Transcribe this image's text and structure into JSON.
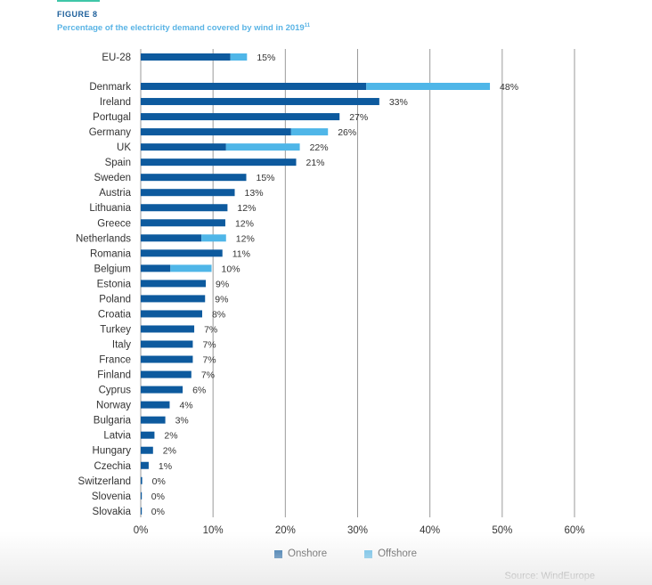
{
  "figure_label": "FIGURE 8",
  "title": "Percentage of the electricity demand covered by wind in 2019",
  "title_footnote": "11",
  "source": "Source: WindEurope",
  "colors": {
    "accent_line": "#3fc6a8",
    "figure_label": "#1b5e9a",
    "title": "#5ab4e5",
    "onshore": "#0d5a9e",
    "offshore": "#4fb6e8",
    "grid": "#9a9a9a"
  },
  "chart_data": {
    "type": "bar",
    "orientation": "horizontal",
    "stacked": true,
    "categories": [
      "EU-28",
      "Denmark",
      "Ireland",
      "Portugal",
      "Germany",
      "UK",
      "Spain",
      "Sweden",
      "Austria",
      "Lithuania",
      "Greece",
      "Netherlands",
      "Romania",
      "Belgium",
      "Estonia",
      "Poland",
      "Croatia",
      "Turkey",
      "Italy",
      "France",
      "Finland",
      "Cyprus",
      "Norway",
      "Bulgaria",
      "Latvia",
      "Hungary",
      "Czechia",
      "Switzerland",
      "Slovenia",
      "Slovakia"
    ],
    "series": [
      {
        "name": "Onshore",
        "values": [
          12.4,
          31.2,
          33.0,
          27.5,
          20.8,
          11.8,
          21.5,
          14.6,
          13.0,
          12.0,
          11.7,
          8.4,
          11.3,
          4.1,
          9.0,
          8.9,
          8.5,
          7.4,
          7.2,
          7.2,
          7.0,
          5.8,
          4.0,
          3.4,
          1.9,
          1.7,
          1.1,
          0.2,
          0.1,
          0.1
        ]
      },
      {
        "name": "Offshore",
        "values": [
          2.3,
          17.1,
          0,
          0,
          5.1,
          10.2,
          0,
          0,
          0,
          0,
          0,
          3.4,
          0,
          5.7,
          0,
          0,
          0,
          0,
          0,
          0,
          0,
          0,
          0,
          0,
          0,
          0,
          0,
          0,
          0,
          0
        ]
      }
    ],
    "total_labels": [
      "15%",
      "48%",
      "33%",
      "27%",
      "26%",
      "22%",
      "21%",
      "15%",
      "13%",
      "12%",
      "12%",
      "12%",
      "11%",
      "10%",
      "9%",
      "9%",
      "8%",
      "7%",
      "7%",
      "7%",
      "7%",
      "6%",
      "4%",
      "3%",
      "2%",
      "2%",
      "1%",
      "0%",
      "0%",
      "0%"
    ],
    "xlim": [
      0,
      60
    ],
    "xticks": [
      "0%",
      "10%",
      "20%",
      "30%",
      "40%",
      "50%",
      "60%"
    ],
    "grid": "vertical",
    "legend": [
      "Onshore",
      "Offshore"
    ],
    "legend_position": "bottom-center"
  }
}
